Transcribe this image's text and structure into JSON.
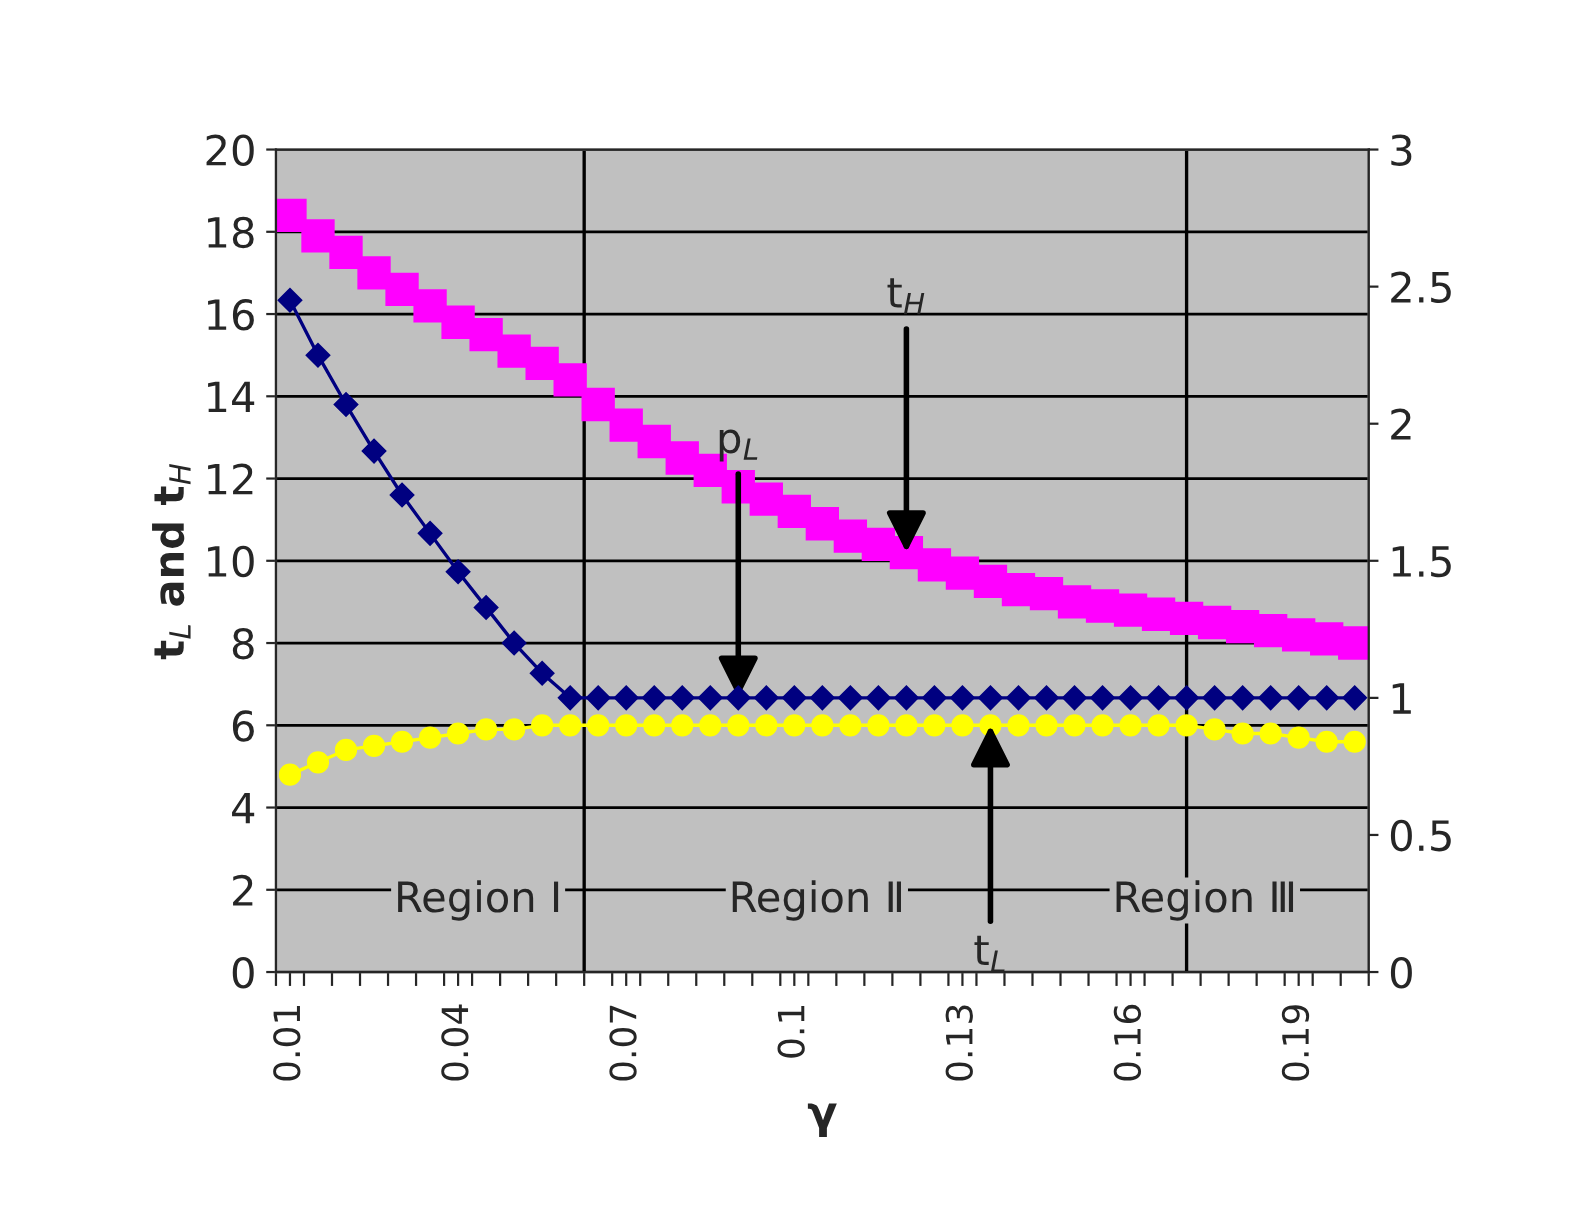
{
  "chart_data": {
    "type": "line",
    "xlabel": "γ",
    "ylabel": "t$_{L}$ and t$_{H}$",
    "x": [
      0.01,
      0.015,
      0.02,
      0.025,
      0.03,
      0.035,
      0.04,
      0.045,
      0.05,
      0.055,
      0.06,
      0.065,
      0.07,
      0.075,
      0.08,
      0.085,
      0.09,
      0.095,
      0.1,
      0.105,
      0.11,
      0.115,
      0.12,
      0.125,
      0.13,
      0.135,
      0.14,
      0.145,
      0.15,
      0.155,
      0.16,
      0.165,
      0.17,
      0.175,
      0.18,
      0.185,
      0.19,
      0.195,
      0.2
    ],
    "series": [
      {
        "type": "scatter",
        "color": "#ff00ff",
        "marker": "square",
        "values": [
          18.4,
          17.9,
          17.5,
          17.0,
          16.6,
          16.2,
          15.8,
          15.5,
          15.1,
          14.8,
          14.4,
          13.8,
          13.3,
          12.9,
          12.5,
          12.2,
          11.8,
          11.5,
          11.2,
          10.9,
          10.6,
          10.4,
          10.2,
          9.9,
          9.7,
          9.5,
          9.3,
          9.2,
          9.0,
          8.9,
          8.8,
          8.7,
          8.6,
          8.5,
          8.4,
          8.3,
          8.2,
          8.1,
          8.0
        ]
      },
      {
        "color": "#ffff00",
        "marker": "circle",
        "values": [
          4.8,
          5.1,
          5.4,
          5.5,
          5.6,
          5.7,
          5.8,
          5.9,
          5.9,
          6.0,
          6.0,
          6.0,
          6.0,
          6.0,
          6.0,
          6.0,
          6.0,
          6.0,
          6.0,
          6.0,
          6.0,
          6.0,
          6.0,
          6.0,
          6.0,
          6.0,
          6.0,
          6.0,
          6.0,
          6.0,
          6.0,
          6.0,
          6.0,
          5.9,
          5.8,
          5.8,
          5.7,
          5.6,
          5.6
        ]
      },
      {
        "color": "#000080",
        "marker": "diamond",
        "axis": "y2",
        "values": [
          2.45,
          2.25,
          2.07,
          1.9,
          1.74,
          1.6,
          1.46,
          1.33,
          1.2,
          1.09,
          1.0,
          1.0,
          1.0,
          1.0,
          1.0,
          1.0,
          1.0,
          1.0,
          1.0,
          1.0,
          1.0,
          1.0,
          1.0,
          1.0,
          1.0,
          1.0,
          1.0,
          1.0,
          1.0,
          1.0,
          1.0,
          1.0,
          1.0,
          1.0,
          1.0,
          1.0,
          1.0,
          1.0,
          1.0
        ]
      }
    ],
    "xlim": [
      0.0075,
      0.2025
    ],
    "xticks": [
      0.01,
      0.04,
      0.07,
      0.1,
      0.13,
      0.16,
      0.19,
      {
        "value": 0.0075,
        "label": null
      },
      {
        "value": 0.0125,
        "label": null
      },
      {
        "value": 0.0175,
        "label": null
      },
      {
        "value": 0.0225,
        "label": null
      },
      {
        "value": 0.0275,
        "label": null
      },
      {
        "value": 0.0325,
        "label": null
      },
      {
        "value": 0.0375,
        "label": null
      },
      {
        "value": 0.0425,
        "label": null
      },
      {
        "value": 0.0475,
        "label": null
      },
      {
        "value": 0.0525,
        "label": null
      },
      {
        "value": 0.0575,
        "label": null
      },
      {
        "value": 0.0625,
        "label": null
      },
      {
        "value": 0.0675,
        "label": null
      },
      {
        "value": 0.0725,
        "label": null
      },
      {
        "value": 0.0775,
        "label": null
      },
      {
        "value": 0.0825,
        "label": null
      },
      {
        "value": 0.0875,
        "label": null
      },
      {
        "value": 0.0925,
        "label": null
      },
      {
        "value": 0.0975,
        "label": null
      },
      {
        "value": 0.1025,
        "label": null
      },
      {
        "value": 0.1075,
        "label": null
      },
      {
        "value": 0.1125,
        "label": null
      },
      {
        "value": 0.1175,
        "label": null
      },
      {
        "value": 0.1225,
        "label": null
      },
      {
        "value": 0.1275,
        "label": null
      },
      {
        "value": 0.1325,
        "label": null
      },
      {
        "value": 0.1375,
        "label": null
      },
      {
        "value": 0.1425,
        "label": null
      },
      {
        "value": 0.1475,
        "label": null
      },
      {
        "value": 0.1525,
        "label": null
      },
      {
        "value": 0.1575,
        "label": null
      },
      {
        "value": 0.1625,
        "label": null
      },
      {
        "value": 0.1675,
        "label": null
      },
      {
        "value": 0.1725,
        "label": null
      },
      {
        "value": 0.1775,
        "label": null
      },
      {
        "value": 0.1825,
        "label": null
      },
      {
        "value": 0.1875,
        "label": null
      },
      {
        "value": 0.1925,
        "label": null
      },
      {
        "value": 0.1975,
        "label": null
      },
      {
        "value": 0.2025,
        "label": null
      }
    ],
    "ylim": [
      0,
      20
    ],
    "yticks": [
      0,
      2,
      4,
      6,
      8,
      10,
      12,
      14,
      16,
      18,
      20
    ],
    "y2lim": [
      0,
      3
    ],
    "y2ticks": [
      0,
      0.5,
      1,
      1.5,
      2,
      2.5,
      3
    ],
    "grid": "y",
    "ref_lines": [
      {
        "axis": "x",
        "value": 0.0625,
        "color": "#000000"
      },
      {
        "axis": "x",
        "value": 0.17,
        "color": "#000000"
      }
    ],
    "annotations": [
      {
        "text": "t$_{H}$",
        "x": 0.12,
        "y": 10.2
      },
      {
        "text": "p$_{L}$",
        "x": 0.09,
        "y": 6.67
      },
      {
        "text": "t$_{L}$",
        "x": 0.135,
        "y": 6.0
      },
      "Region I",
      "Region Ⅱ",
      "Region Ⅲ"
    ]
  }
}
